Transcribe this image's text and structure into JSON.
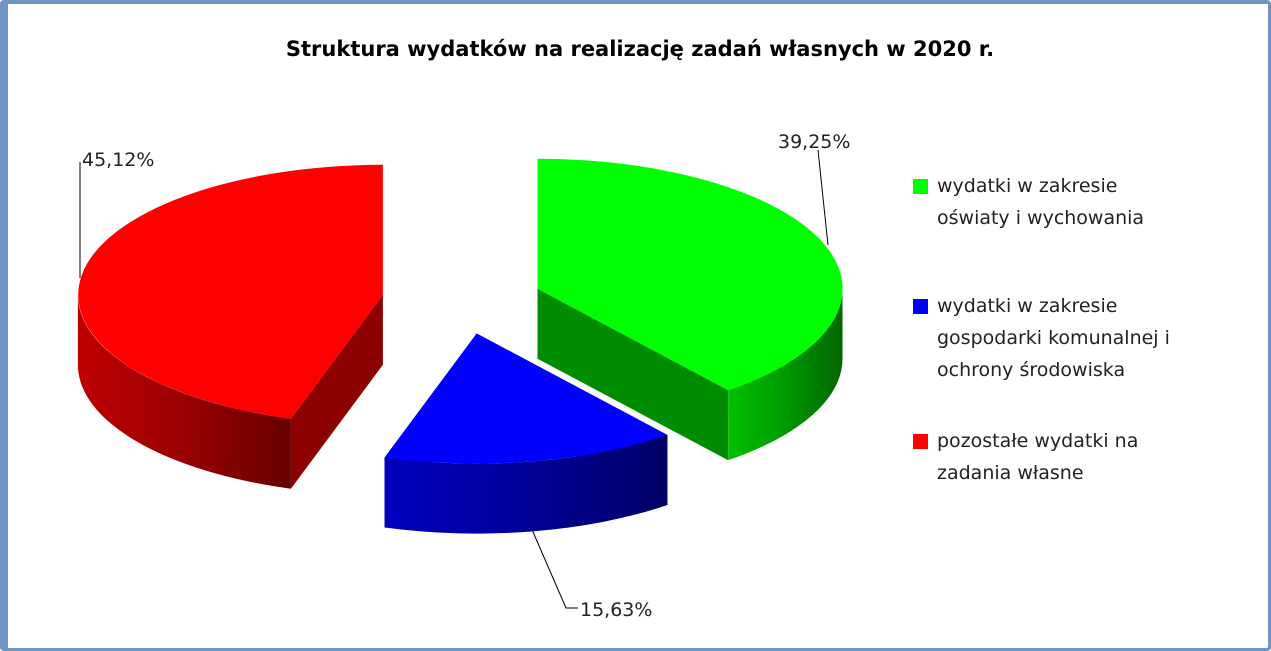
{
  "chart_data": {
    "type": "pie",
    "title": "Struktura wydatków na realizację zadań własnych w 2020 r.",
    "categories": [
      "wydatki w zakresie oświaty i wychowania",
      "wydatki w zakresie gospodarki komunalnej i ochrony środowiska",
      "pozostałe wydatki na zadania własne"
    ],
    "values": [
      39.25,
      15.63,
      45.12
    ],
    "value_labels": [
      "39,25%",
      "15,63%",
      "45,12%"
    ],
    "colors": [
      "#00ff00",
      "#0000ff",
      "#ff0000"
    ],
    "legend": "right"
  }
}
